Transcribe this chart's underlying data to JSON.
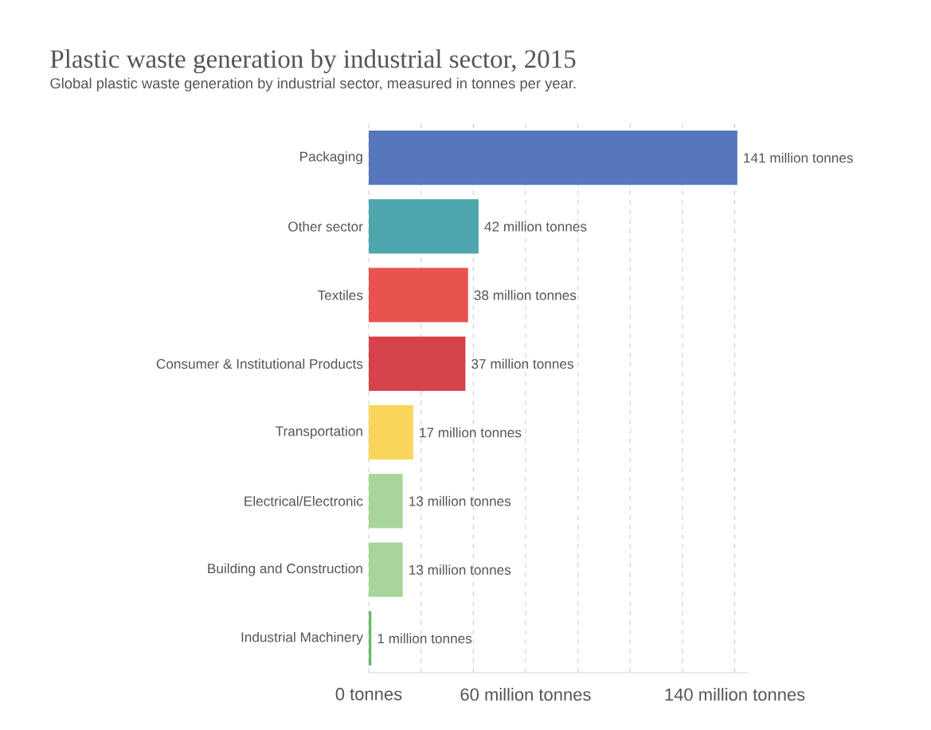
{
  "chart_data": {
    "type": "bar",
    "orientation": "horizontal",
    "title": "Plastic waste generation by industrial sector, 2015",
    "subtitle": "Global plastic waste generation by industrial sector, measured in tonnes per year.",
    "categories": [
      "Packaging",
      "Other sector",
      "Textiles",
      "Consumer & Institutional Products",
      "Transportation",
      "Electrical/Electronic",
      "Building and Construction",
      "Industrial Machinery"
    ],
    "values": [
      141,
      42,
      38,
      37,
      17,
      13,
      13,
      1
    ],
    "colors": [
      "#5677bd",
      "#4da6ad",
      "#e8534f",
      "#d6434a",
      "#fad55c",
      "#a8d59a",
      "#a8d59a",
      "#6ab96a"
    ],
    "value_labels": [
      "141 million tonnes",
      "42 million tonnes",
      "38 million tonnes",
      "37 million tonnes",
      "17 million tonnes",
      "13 million tonnes",
      "13 million tonnes",
      "1 million tonnes"
    ],
    "xlim": [
      0,
      145
    ],
    "xticks": [
      {
        "value": 0,
        "label": "0 tonnes"
      },
      {
        "value": 20,
        "label": null
      },
      {
        "value": 40,
        "label": null
      },
      {
        "value": 60,
        "label": "60 million tonnes"
      },
      {
        "value": 80,
        "label": null
      },
      {
        "value": 100,
        "label": null
      },
      {
        "value": 120,
        "label": null
      },
      {
        "value": 140,
        "label": "140 million tonnes"
      }
    ],
    "grid": "x"
  }
}
